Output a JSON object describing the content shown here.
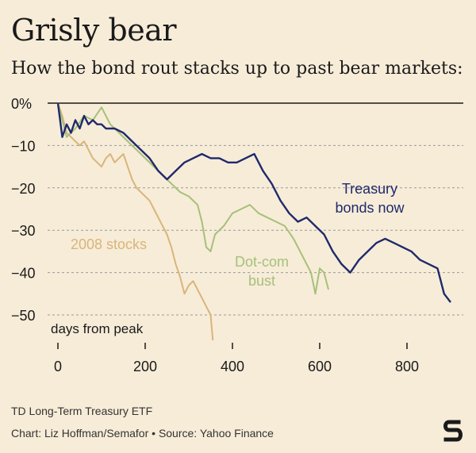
{
  "title": "Grisly bear",
  "subtitle": "How the bond rout stacks up to past bear markets:",
  "footer": {
    "note": "TD Long-Term Treasury ETF",
    "credit": "Chart: Liz Hoffman/Semafor • Source: Yahoo Finance"
  },
  "logo": {
    "icon": "semafor-logo-icon",
    "text": "S"
  },
  "colors": {
    "background": "#f7ecd8",
    "treasury": "#1f2a6b",
    "dotcom": "#a6c07a",
    "stocks2008": "#d9b57a",
    "grid": "#9a9a9a"
  },
  "chart_data": {
    "type": "line",
    "xlabel": "days from peak",
    "xlim": [
      0,
      900
    ],
    "ylim": [
      -55,
      0
    ],
    "x_ticks": [
      "0",
      "200",
      "400",
      "600",
      "800"
    ],
    "x_tick_values": [
      0,
      200,
      400,
      600,
      800
    ],
    "y_ticks": [
      "0%",
      "−10",
      "−20",
      "−30",
      "−40",
      "−50"
    ],
    "y_tick_values": [
      0,
      -10,
      -20,
      -30,
      -40,
      -50
    ],
    "grid": "horizontal dashed",
    "series": [
      {
        "name": "Treasury bonds now",
        "label_lines": [
          "Treasury",
          "bonds now"
        ],
        "color_key": "treasury",
        "points": [
          [
            0,
            0
          ],
          [
            10,
            -8
          ],
          [
            20,
            -5
          ],
          [
            30,
            -7
          ],
          [
            40,
            -4
          ],
          [
            50,
            -6
          ],
          [
            60,
            -3
          ],
          [
            70,
            -5
          ],
          [
            80,
            -4
          ],
          [
            90,
            -5
          ],
          [
            100,
            -5
          ],
          [
            110,
            -6
          ],
          [
            130,
            -6
          ],
          [
            150,
            -7
          ],
          [
            170,
            -9
          ],
          [
            190,
            -11
          ],
          [
            210,
            -13
          ],
          [
            230,
            -16
          ],
          [
            250,
            -18
          ],
          [
            270,
            -16
          ],
          [
            290,
            -14
          ],
          [
            310,
            -13
          ],
          [
            330,
            -12
          ],
          [
            350,
            -13
          ],
          [
            370,
            -13
          ],
          [
            390,
            -14
          ],
          [
            410,
            -14
          ],
          [
            430,
            -13
          ],
          [
            450,
            -12
          ],
          [
            470,
            -16
          ],
          [
            490,
            -19
          ],
          [
            510,
            -23
          ],
          [
            530,
            -26
          ],
          [
            550,
            -28
          ],
          [
            570,
            -27
          ],
          [
            590,
            -29
          ],
          [
            610,
            -31
          ],
          [
            630,
            -35
          ],
          [
            650,
            -38
          ],
          [
            670,
            -40
          ],
          [
            690,
            -37
          ],
          [
            710,
            -35
          ],
          [
            730,
            -33
          ],
          [
            750,
            -32
          ],
          [
            770,
            -33
          ],
          [
            790,
            -34
          ],
          [
            810,
            -35
          ],
          [
            830,
            -37
          ],
          [
            850,
            -38
          ],
          [
            870,
            -39
          ],
          [
            885,
            -45
          ],
          [
            900,
            -47
          ]
        ]
      },
      {
        "name": "Dot-com bust",
        "label_lines": [
          "Dot-com",
          "bust"
        ],
        "color_key": "dotcom",
        "points": [
          [
            0,
            0
          ],
          [
            10,
            -4
          ],
          [
            20,
            -8
          ],
          [
            40,
            -6
          ],
          [
            60,
            -3
          ],
          [
            80,
            -4
          ],
          [
            100,
            -1
          ],
          [
            120,
            -5
          ],
          [
            140,
            -7
          ],
          [
            160,
            -9
          ],
          [
            180,
            -11
          ],
          [
            200,
            -13
          ],
          [
            220,
            -15
          ],
          [
            240,
            -17
          ],
          [
            260,
            -19
          ],
          [
            280,
            -21
          ],
          [
            300,
            -22
          ],
          [
            320,
            -24
          ],
          [
            330,
            -28
          ],
          [
            340,
            -34
          ],
          [
            350,
            -35
          ],
          [
            360,
            -31
          ],
          [
            380,
            -29
          ],
          [
            400,
            -26
          ],
          [
            420,
            -25
          ],
          [
            440,
            -24
          ],
          [
            460,
            -26
          ],
          [
            480,
            -27
          ],
          [
            500,
            -28
          ],
          [
            520,
            -29
          ],
          [
            540,
            -32
          ],
          [
            560,
            -36
          ],
          [
            580,
            -40
          ],
          [
            590,
            -45
          ],
          [
            600,
            -39
          ],
          [
            610,
            -40
          ],
          [
            620,
            -44
          ]
        ]
      },
      {
        "name": "2008 stocks",
        "label_lines": [
          "2008 stocks"
        ],
        "color_key": "stocks2008",
        "points": [
          [
            0,
            0
          ],
          [
            10,
            -3
          ],
          [
            20,
            -7
          ],
          [
            30,
            -8
          ],
          [
            40,
            -9
          ],
          [
            50,
            -10
          ],
          [
            60,
            -9
          ],
          [
            70,
            -11
          ],
          [
            80,
            -13
          ],
          [
            90,
            -14
          ],
          [
            100,
            -15
          ],
          [
            110,
            -13
          ],
          [
            120,
            -12
          ],
          [
            130,
            -14
          ],
          [
            140,
            -13
          ],
          [
            150,
            -12
          ],
          [
            160,
            -15
          ],
          [
            170,
            -18
          ],
          [
            180,
            -20
          ],
          [
            190,
            -21
          ],
          [
            200,
            -22
          ],
          [
            210,
            -23
          ],
          [
            220,
            -25
          ],
          [
            230,
            -27
          ],
          [
            240,
            -29
          ],
          [
            250,
            -31
          ],
          [
            260,
            -34
          ],
          [
            270,
            -38
          ],
          [
            280,
            -41
          ],
          [
            290,
            -45
          ],
          [
            300,
            -43
          ],
          [
            310,
            -42
          ],
          [
            320,
            -44
          ],
          [
            330,
            -46
          ],
          [
            340,
            -48
          ],
          [
            350,
            -50
          ],
          [
            355,
            -56
          ]
        ]
      }
    ]
  }
}
